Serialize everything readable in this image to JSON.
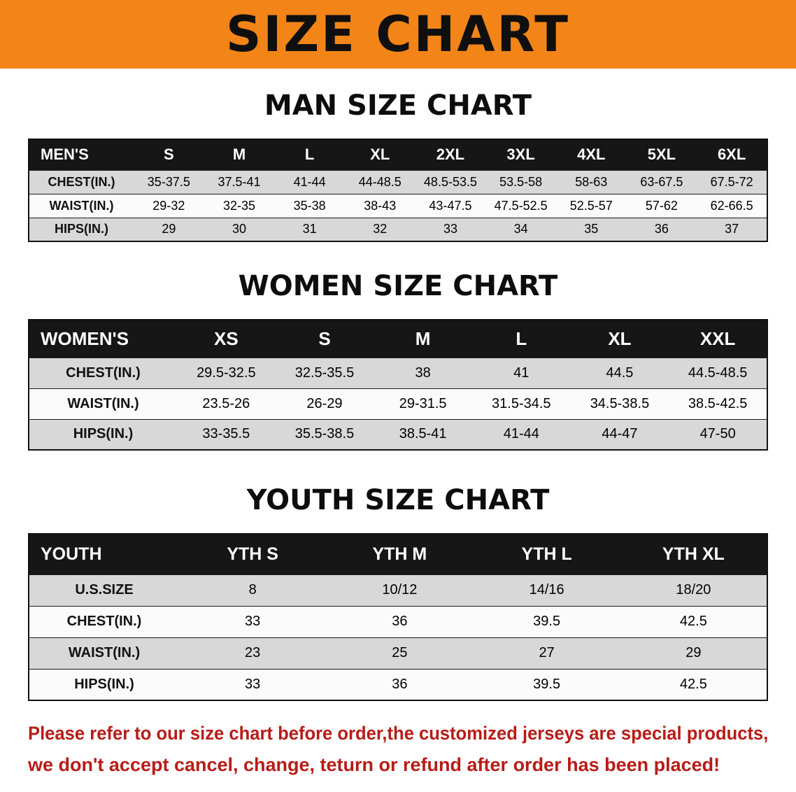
{
  "banner": {
    "title": "SIZE CHART"
  },
  "colors": {
    "banner-bg": "#f28418",
    "banner-text": "#0f0f0f",
    "table-header-bg": "#161616",
    "table-header-text": "#ffffff",
    "row-gray": "#d8d8d8",
    "row-white": "#fbfbfb",
    "disclaimer-red": "#b71c17"
  },
  "chart_data": [
    {
      "type": "table",
      "title": "MAN SIZE CHART",
      "header_label": "MEN'S",
      "columns": [
        "S",
        "M",
        "L",
        "XL",
        "2XL",
        "3XL",
        "4XL",
        "5XL",
        "6XL"
      ],
      "rows": [
        {
          "label": "CHEST(IN.)",
          "values": [
            "35-37.5",
            "37.5-41",
            "41-44",
            "44-48.5",
            "48.5-53.5",
            "53.5-58",
            "58-63",
            "63-67.5",
            "67.5-72"
          ]
        },
        {
          "label": "WAIST(IN.)",
          "values": [
            "29-32",
            "32-35",
            "35-38",
            "38-43",
            "43-47.5",
            "47.5-52.5",
            "52.5-57",
            "57-62",
            "62-66.5"
          ]
        },
        {
          "label": "HIPS(IN.)",
          "values": [
            "29",
            "30",
            "31",
            "32",
            "33",
            "34",
            "35",
            "36",
            "37"
          ]
        }
      ]
    },
    {
      "type": "table",
      "title": "WOMEN SIZE CHART",
      "header_label": "WOMEN'S",
      "columns": [
        "XS",
        "S",
        "M",
        "L",
        "XL",
        "XXL"
      ],
      "rows": [
        {
          "label": "CHEST(IN.)",
          "values": [
            "29.5-32.5",
            "32.5-35.5",
            "38",
            "41",
            "44.5",
            "44.5-48.5"
          ]
        },
        {
          "label": "WAIST(IN.)",
          "values": [
            "23.5-26",
            "26-29",
            "29-31.5",
            "31.5-34.5",
            "34.5-38.5",
            "38.5-42.5"
          ]
        },
        {
          "label": "HIPS(IN.)",
          "values": [
            "33-35.5",
            "35.5-38.5",
            "38.5-41",
            "41-44",
            "44-47",
            "47-50"
          ]
        }
      ]
    },
    {
      "type": "table",
      "title": "YOUTH SIZE CHART",
      "header_label": "YOUTH",
      "columns": [
        "YTH S",
        "YTH M",
        "YTH L",
        "YTH XL"
      ],
      "rows": [
        {
          "label": "U.S.SIZE",
          "values": [
            "8",
            "10/12",
            "14/16",
            "18/20"
          ]
        },
        {
          "label": "CHEST(IN.)",
          "values": [
            "33",
            "36",
            "39.5",
            "42.5"
          ]
        },
        {
          "label": "WAIST(IN.)",
          "values": [
            "23",
            "25",
            "27",
            "29"
          ]
        },
        {
          "label": "HIPS(IN.)",
          "values": [
            "33",
            "36",
            "39.5",
            "42.5"
          ]
        }
      ]
    }
  ],
  "disclaimer": {
    "line1": "Please refer to our size chart before order,the customized jerseys are special products,",
    "line2": "we don't accept cancel, change, teturn or refund after order has been placed!"
  }
}
